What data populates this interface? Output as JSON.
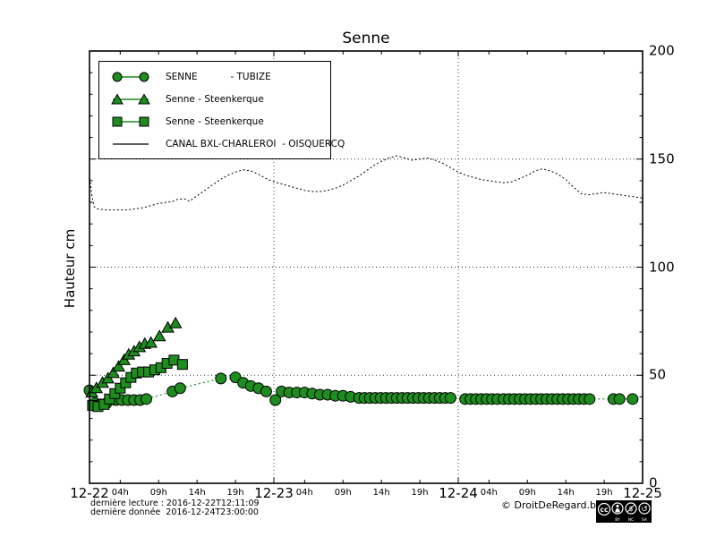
{
  "title": "Senne",
  "ylabel": "Hauteur cm",
  "footer": {
    "line1": "dernière lecture : 2016-12-22T12:11:09",
    "line2": "dernière donnée  2016-12-24T23:00:00",
    "copyright": "© DroitDeRegard.be",
    "license_terms": [
      "BY",
      "NC",
      "SA"
    ]
  },
  "colors": {
    "series_green": "#1e8c1e",
    "line_black": "#000000",
    "grid": "#333333"
  },
  "chart_data": {
    "type": "line",
    "title": "Senne",
    "xlabel": "",
    "ylabel": "Hauteur cm",
    "ylim": [
      0,
      200
    ],
    "yticks": [
      0,
      50,
      100,
      150,
      200
    ],
    "grid": {
      "h_values": [
        50,
        100,
        150
      ],
      "v_hours": [
        24,
        48
      ]
    },
    "x_axis": {
      "unit": "hours since 2016-12-22 00:00",
      "range_hours": [
        0,
        72
      ],
      "day_labels": [
        "12-22",
        "12-23",
        "12-24",
        "12-25"
      ],
      "hour_labels": [
        "04h",
        "09h",
        "14h",
        "19h"
      ],
      "hour_offsets": [
        4,
        9,
        14,
        19
      ]
    },
    "legend_position": "upper left",
    "series": [
      {
        "name": "SENNE           - TUBIZE",
        "marker": "circle",
        "line_style": "dotted",
        "color": "#1e8c1e",
        "points": [
          [
            0,
            43
          ],
          [
            0.7,
            37
          ],
          [
            1.4,
            36.5
          ],
          [
            2.2,
            37
          ],
          [
            3.4,
            38.5
          ],
          [
            4.2,
            38.5
          ],
          [
            5,
            38.5
          ],
          [
            5.8,
            38.5
          ],
          [
            6.6,
            38.5
          ],
          [
            7.4,
            39
          ],
          [
            10.8,
            42.5
          ],
          [
            11.8,
            44
          ],
          [
            17.1,
            48.5
          ],
          [
            19,
            49
          ],
          [
            20,
            46.5
          ],
          [
            21,
            45
          ],
          [
            22,
            44
          ],
          [
            23,
            42.5
          ],
          [
            24.2,
            38.5
          ],
          [
            25,
            42.5
          ],
          [
            26,
            42
          ],
          [
            27,
            42
          ],
          [
            28,
            42
          ],
          [
            29,
            41.5
          ],
          [
            30,
            41
          ],
          [
            31,
            41
          ],
          [
            32,
            40.5
          ],
          [
            33,
            40.5
          ],
          [
            34,
            40
          ],
          [
            35.1,
            39.5
          ],
          [
            35.8,
            39.5
          ],
          [
            36.5,
            39.5
          ],
          [
            37.2,
            39.5
          ],
          [
            37.9,
            39.5
          ],
          [
            38.6,
            39.5
          ],
          [
            39.3,
            39.5
          ],
          [
            40,
            39.5
          ],
          [
            40.7,
            39.5
          ],
          [
            41.4,
            39.5
          ],
          [
            42.1,
            39.5
          ],
          [
            42.8,
            39.5
          ],
          [
            43.5,
            39.5
          ],
          [
            44.2,
            39.5
          ],
          [
            44.9,
            39.5
          ],
          [
            45.6,
            39.5
          ],
          [
            46.3,
            39.5
          ],
          [
            47,
            39.5
          ],
          [
            48.9,
            39
          ],
          [
            49.6,
            39
          ],
          [
            50.3,
            39
          ],
          [
            51,
            39
          ],
          [
            51.7,
            39
          ],
          [
            52.4,
            39
          ],
          [
            53.1,
            39
          ],
          [
            53.9,
            39
          ],
          [
            54.6,
            39
          ],
          [
            55.3,
            39
          ],
          [
            56,
            39
          ],
          [
            56.7,
            39
          ],
          [
            57.4,
            39
          ],
          [
            58.1,
            39
          ],
          [
            58.8,
            39
          ],
          [
            59.5,
            39
          ],
          [
            60.2,
            39
          ],
          [
            60.9,
            39
          ],
          [
            61.6,
            39
          ],
          [
            62.3,
            39
          ],
          [
            63,
            39
          ],
          [
            63.7,
            39
          ],
          [
            64.4,
            39
          ],
          [
            65.1,
            39
          ],
          [
            68.2,
            39
          ],
          [
            69,
            39
          ],
          [
            70.7,
            39
          ]
        ]
      },
      {
        "name": "Senne - Steenkerque",
        "marker": "triangle",
        "line_style": "dotted",
        "color": "#1e8c1e",
        "points": [
          [
            0.3,
            42
          ],
          [
            0.9,
            44
          ],
          [
            1.7,
            46.5
          ],
          [
            2.4,
            48.5
          ],
          [
            3.1,
            51
          ],
          [
            3.8,
            54
          ],
          [
            4.5,
            57
          ],
          [
            5.1,
            59.5
          ],
          [
            5.8,
            61
          ],
          [
            6.5,
            63
          ],
          [
            7.2,
            64.5
          ],
          [
            8,
            65
          ],
          [
            9.1,
            68
          ],
          [
            10.2,
            72
          ],
          [
            11.2,
            74
          ]
        ]
      },
      {
        "name": "Senne - Steenkerque",
        "marker": "square",
        "line_style": "dotted",
        "color": "#1e8c1e",
        "points": [
          [
            0.4,
            36
          ],
          [
            1.1,
            35.5
          ],
          [
            1.9,
            36.5
          ],
          [
            2.6,
            39
          ],
          [
            3.3,
            41.5
          ],
          [
            4,
            44
          ],
          [
            4.7,
            46.5
          ],
          [
            5.4,
            49
          ],
          [
            6.1,
            51
          ],
          [
            6.9,
            51.5
          ],
          [
            7.7,
            51.5
          ],
          [
            8.5,
            52.5
          ],
          [
            9.3,
            53.5
          ],
          [
            10.1,
            55.5
          ],
          [
            11,
            57
          ],
          [
            12.1,
            55
          ]
        ]
      },
      {
        "name": "CANAL BXL-CHARLEROI  - OISQUERCQ",
        "marker": "none",
        "line_style": "dotted",
        "color": "#000000",
        "points": [
          [
            0,
            143
          ],
          [
            0.3,
            133
          ],
          [
            0.6,
            128
          ],
          [
            1,
            127
          ],
          [
            2,
            126.5
          ],
          [
            3,
            126.5
          ],
          [
            4,
            126.5
          ],
          [
            5,
            126.5
          ],
          [
            6,
            127
          ],
          [
            7,
            127.5
          ],
          [
            8,
            128.5
          ],
          [
            9,
            129.5
          ],
          [
            10,
            130
          ],
          [
            11,
            130.5
          ],
          [
            11.5,
            131.5
          ],
          [
            12.5,
            131.5
          ],
          [
            13,
            130.5
          ],
          [
            14,
            133
          ],
          [
            15,
            135.5
          ],
          [
            16,
            138
          ],
          [
            17,
            140.5
          ],
          [
            18,
            142.5
          ],
          [
            19,
            144
          ],
          [
            20,
            145
          ],
          [
            21,
            144.5
          ],
          [
            22,
            143
          ],
          [
            23,
            141
          ],
          [
            24,
            139.5
          ],
          [
            25,
            138.5
          ],
          [
            26,
            137.5
          ],
          [
            27,
            136.5
          ],
          [
            28,
            135.5
          ],
          [
            29,
            135
          ],
          [
            30,
            135
          ],
          [
            31,
            135.5
          ],
          [
            32,
            136.5
          ],
          [
            33,
            138
          ],
          [
            34,
            140
          ],
          [
            35,
            142
          ],
          [
            36,
            144.5
          ],
          [
            37,
            147
          ],
          [
            38,
            149
          ],
          [
            39,
            150.5
          ],
          [
            40,
            151.5
          ],
          [
            41,
            150.5
          ],
          [
            42,
            149.5
          ],
          [
            43,
            150
          ],
          [
            44,
            150.5
          ],
          [
            45,
            149.5
          ],
          [
            46,
            148
          ],
          [
            47,
            146
          ],
          [
            48,
            144
          ],
          [
            49,
            142.5
          ],
          [
            50,
            141.5
          ],
          [
            51,
            140.5
          ],
          [
            52,
            140
          ],
          [
            53,
            139.5
          ],
          [
            54,
            139
          ],
          [
            55,
            139.5
          ],
          [
            56,
            141
          ],
          [
            57,
            142.5
          ],
          [
            58,
            144.5
          ],
          [
            59,
            145.5
          ],
          [
            60,
            144.5
          ],
          [
            61,
            143
          ],
          [
            62,
            140.5
          ],
          [
            63,
            137
          ],
          [
            64,
            134
          ],
          [
            65,
            133.5
          ],
          [
            66,
            134
          ],
          [
            67,
            134.5
          ],
          [
            68,
            134
          ],
          [
            69,
            133.5
          ],
          [
            70,
            133
          ],
          [
            71,
            132.5
          ],
          [
            72,
            132
          ]
        ]
      }
    ]
  }
}
